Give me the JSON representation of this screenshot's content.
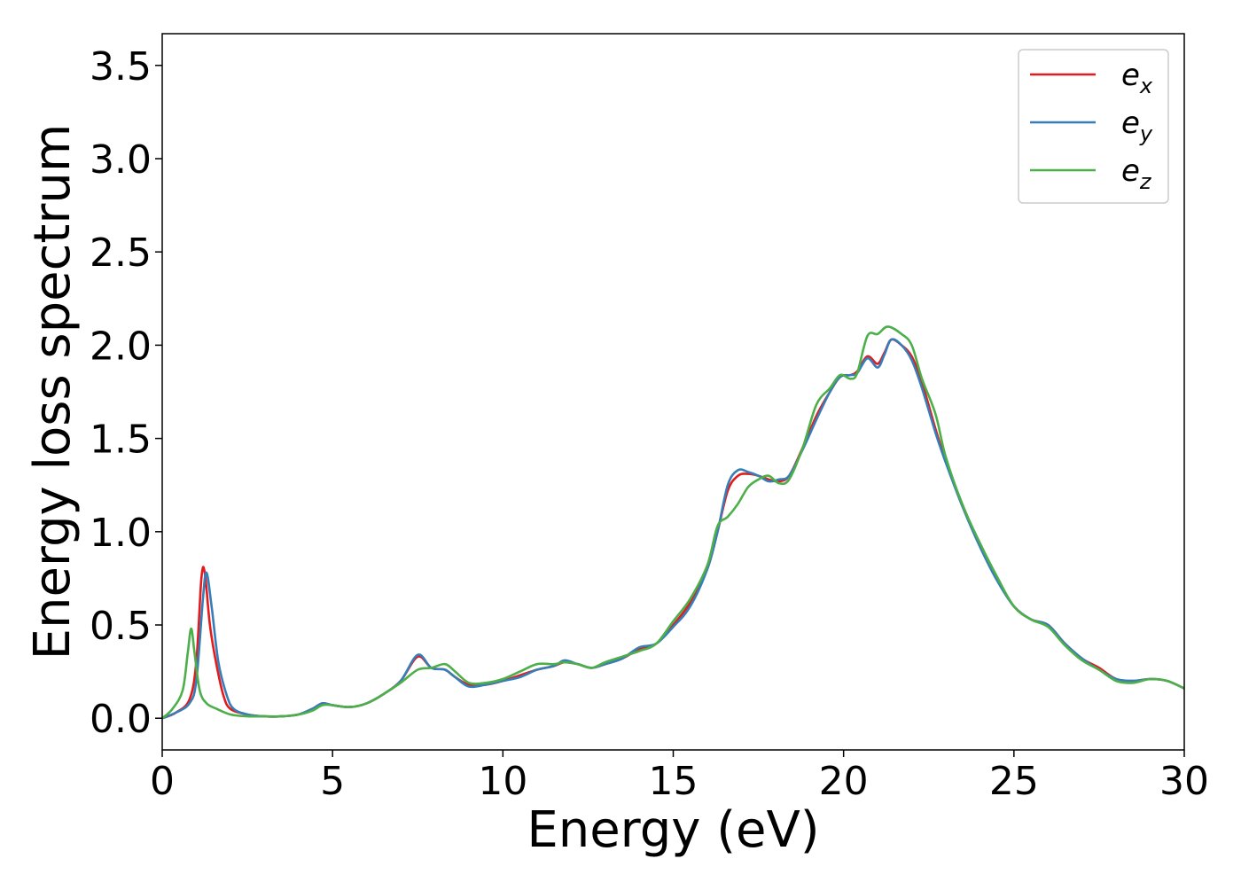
{
  "chart_data": {
    "type": "line",
    "title": "",
    "xlabel": "Energy (eV)",
    "ylabel": "Energy loss spectrum",
    "xlim": [
      0,
      30
    ],
    "ylim": [
      -0.17,
      3.67
    ],
    "x_ticks": [
      "0",
      "5",
      "10",
      "15",
      "20",
      "25",
      "30"
    ],
    "y_ticks": [
      "0.0",
      "0.5",
      "1.0",
      "1.5",
      "2.0",
      "2.5",
      "3.0",
      "3.5"
    ],
    "grid": false,
    "legend_position": "top-right",
    "series": [
      {
        "name": "e",
        "subscript": "x",
        "color": "#e41a1c",
        "points": [
          [
            0,
            0.0
          ],
          [
            0.4,
            0.03
          ],
          [
            0.8,
            0.1
          ],
          [
            1.0,
            0.3
          ],
          [
            1.15,
            0.75
          ],
          [
            1.25,
            0.78
          ],
          [
            1.4,
            0.5
          ],
          [
            1.6,
            0.28
          ],
          [
            1.8,
            0.12
          ],
          [
            2.0,
            0.05
          ],
          [
            2.5,
            0.02
          ],
          [
            3.0,
            0.01
          ],
          [
            3.5,
            0.01
          ],
          [
            4.0,
            0.02
          ],
          [
            4.4,
            0.05
          ],
          [
            4.7,
            0.08
          ],
          [
            5.0,
            0.07
          ],
          [
            5.5,
            0.06
          ],
          [
            6.0,
            0.08
          ],
          [
            6.5,
            0.13
          ],
          [
            7.0,
            0.2
          ],
          [
            7.5,
            0.33
          ],
          [
            7.9,
            0.27
          ],
          [
            8.3,
            0.26
          ],
          [
            8.6,
            0.22
          ],
          [
            9.0,
            0.18
          ],
          [
            9.5,
            0.18
          ],
          [
            10.0,
            0.2
          ],
          [
            10.5,
            0.23
          ],
          [
            11.0,
            0.26
          ],
          [
            11.5,
            0.28
          ],
          [
            11.8,
            0.3
          ],
          [
            12.2,
            0.29
          ],
          [
            12.6,
            0.27
          ],
          [
            13.0,
            0.29
          ],
          [
            13.5,
            0.32
          ],
          [
            14.0,
            0.37
          ],
          [
            14.5,
            0.4
          ],
          [
            15.0,
            0.5
          ],
          [
            15.5,
            0.62
          ],
          [
            16.0,
            0.8
          ],
          [
            16.3,
            1.0
          ],
          [
            16.6,
            1.22
          ],
          [
            16.9,
            1.3
          ],
          [
            17.2,
            1.31
          ],
          [
            17.5,
            1.3
          ],
          [
            17.8,
            1.28
          ],
          [
            18.1,
            1.27
          ],
          [
            18.4,
            1.3
          ],
          [
            18.8,
            1.45
          ],
          [
            19.2,
            1.62
          ],
          [
            19.6,
            1.75
          ],
          [
            19.9,
            1.83
          ],
          [
            20.2,
            1.84
          ],
          [
            20.4,
            1.86
          ],
          [
            20.7,
            1.94
          ],
          [
            21.0,
            1.9
          ],
          [
            21.2,
            1.96
          ],
          [
            21.4,
            2.03
          ],
          [
            21.7,
            2.0
          ],
          [
            22.0,
            1.94
          ],
          [
            22.3,
            1.8
          ],
          [
            22.7,
            1.55
          ],
          [
            23.0,
            1.38
          ],
          [
            23.5,
            1.14
          ],
          [
            24.0,
            0.93
          ],
          [
            24.5,
            0.75
          ],
          [
            25.0,
            0.6
          ],
          [
            25.5,
            0.53
          ],
          [
            26.0,
            0.5
          ],
          [
            26.5,
            0.4
          ],
          [
            27.0,
            0.32
          ],
          [
            27.5,
            0.27
          ],
          [
            28.0,
            0.21
          ],
          [
            28.5,
            0.2
          ],
          [
            29.0,
            0.21
          ],
          [
            29.5,
            0.2
          ],
          [
            30.0,
            0.16
          ]
        ]
      },
      {
        "name": "e",
        "subscript": "y",
        "color": "#377eb8",
        "points": [
          [
            0,
            0.0
          ],
          [
            0.4,
            0.03
          ],
          [
            0.8,
            0.08
          ],
          [
            1.0,
            0.2
          ],
          [
            1.2,
            0.65
          ],
          [
            1.3,
            0.78
          ],
          [
            1.45,
            0.6
          ],
          [
            1.65,
            0.3
          ],
          [
            1.9,
            0.12
          ],
          [
            2.1,
            0.05
          ],
          [
            2.5,
            0.02
          ],
          [
            3.0,
            0.01
          ],
          [
            3.5,
            0.01
          ],
          [
            4.0,
            0.02
          ],
          [
            4.4,
            0.05
          ],
          [
            4.7,
            0.08
          ],
          [
            5.0,
            0.07
          ],
          [
            5.5,
            0.06
          ],
          [
            6.0,
            0.08
          ],
          [
            6.5,
            0.13
          ],
          [
            7.0,
            0.2
          ],
          [
            7.5,
            0.34
          ],
          [
            7.9,
            0.27
          ],
          [
            8.3,
            0.26
          ],
          [
            8.6,
            0.22
          ],
          [
            9.0,
            0.17
          ],
          [
            9.5,
            0.18
          ],
          [
            10.0,
            0.2
          ],
          [
            10.5,
            0.22
          ],
          [
            11.0,
            0.26
          ],
          [
            11.5,
            0.28
          ],
          [
            11.8,
            0.31
          ],
          [
            12.2,
            0.29
          ],
          [
            12.6,
            0.27
          ],
          [
            13.0,
            0.29
          ],
          [
            13.5,
            0.32
          ],
          [
            14.0,
            0.38
          ],
          [
            14.5,
            0.4
          ],
          [
            15.0,
            0.49
          ],
          [
            15.5,
            0.6
          ],
          [
            16.0,
            0.8
          ],
          [
            16.3,
            1.0
          ],
          [
            16.6,
            1.25
          ],
          [
            16.9,
            1.33
          ],
          [
            17.2,
            1.32
          ],
          [
            17.5,
            1.3
          ],
          [
            17.8,
            1.27
          ],
          [
            18.1,
            1.28
          ],
          [
            18.4,
            1.3
          ],
          [
            18.8,
            1.44
          ],
          [
            19.2,
            1.6
          ],
          [
            19.6,
            1.75
          ],
          [
            19.9,
            1.83
          ],
          [
            20.2,
            1.84
          ],
          [
            20.4,
            1.85
          ],
          [
            20.7,
            1.93
          ],
          [
            21.0,
            1.88
          ],
          [
            21.2,
            1.95
          ],
          [
            21.4,
            2.03
          ],
          [
            21.7,
            2.0
          ],
          [
            22.0,
            1.92
          ],
          [
            22.3,
            1.77
          ],
          [
            22.7,
            1.53
          ],
          [
            23.0,
            1.37
          ],
          [
            23.5,
            1.13
          ],
          [
            24.0,
            0.92
          ],
          [
            24.5,
            0.74
          ],
          [
            25.0,
            0.6
          ],
          [
            25.5,
            0.53
          ],
          [
            26.0,
            0.5
          ],
          [
            26.5,
            0.4
          ],
          [
            27.0,
            0.32
          ],
          [
            27.5,
            0.26
          ],
          [
            28.0,
            0.21
          ],
          [
            28.5,
            0.2
          ],
          [
            29.0,
            0.21
          ],
          [
            29.5,
            0.2
          ],
          [
            30.0,
            0.16
          ]
        ]
      },
      {
        "name": "e",
        "subscript": "z",
        "color": "#4daf4a",
        "points": [
          [
            0,
            0.0
          ],
          [
            0.3,
            0.05
          ],
          [
            0.6,
            0.15
          ],
          [
            0.75,
            0.35
          ],
          [
            0.85,
            0.48
          ],
          [
            0.95,
            0.35
          ],
          [
            1.1,
            0.15
          ],
          [
            1.3,
            0.08
          ],
          [
            1.6,
            0.05
          ],
          [
            2.0,
            0.02
          ],
          [
            2.5,
            0.01
          ],
          [
            3.0,
            0.01
          ],
          [
            3.5,
            0.01
          ],
          [
            4.0,
            0.02
          ],
          [
            4.4,
            0.04
          ],
          [
            4.7,
            0.07
          ],
          [
            5.0,
            0.07
          ],
          [
            5.5,
            0.06
          ],
          [
            6.0,
            0.08
          ],
          [
            6.5,
            0.13
          ],
          [
            7.0,
            0.19
          ],
          [
            7.5,
            0.26
          ],
          [
            7.9,
            0.27
          ],
          [
            8.3,
            0.29
          ],
          [
            8.6,
            0.25
          ],
          [
            9.0,
            0.19
          ],
          [
            9.5,
            0.19
          ],
          [
            10.0,
            0.21
          ],
          [
            10.5,
            0.25
          ],
          [
            11.0,
            0.29
          ],
          [
            11.5,
            0.29
          ],
          [
            11.8,
            0.3
          ],
          [
            12.2,
            0.29
          ],
          [
            12.6,
            0.27
          ],
          [
            13.0,
            0.3
          ],
          [
            13.5,
            0.33
          ],
          [
            14.0,
            0.36
          ],
          [
            14.5,
            0.4
          ],
          [
            15.0,
            0.52
          ],
          [
            15.5,
            0.64
          ],
          [
            16.0,
            0.82
          ],
          [
            16.3,
            1.03
          ],
          [
            16.6,
            1.08
          ],
          [
            16.9,
            1.15
          ],
          [
            17.2,
            1.24
          ],
          [
            17.5,
            1.28
          ],
          [
            17.8,
            1.3
          ],
          [
            18.1,
            1.26
          ],
          [
            18.4,
            1.28
          ],
          [
            18.8,
            1.45
          ],
          [
            19.2,
            1.68
          ],
          [
            19.6,
            1.77
          ],
          [
            19.9,
            1.84
          ],
          [
            20.2,
            1.82
          ],
          [
            20.4,
            1.85
          ],
          [
            20.7,
            2.05
          ],
          [
            21.0,
            2.06
          ],
          [
            21.3,
            2.1
          ],
          [
            21.7,
            2.06
          ],
          [
            22.0,
            2.0
          ],
          [
            22.3,
            1.82
          ],
          [
            22.7,
            1.63
          ],
          [
            23.0,
            1.4
          ],
          [
            23.5,
            1.14
          ],
          [
            24.0,
            0.94
          ],
          [
            24.5,
            0.76
          ],
          [
            25.0,
            0.6
          ],
          [
            25.5,
            0.53
          ],
          [
            26.0,
            0.49
          ],
          [
            26.5,
            0.39
          ],
          [
            27.0,
            0.31
          ],
          [
            27.5,
            0.26
          ],
          [
            28.0,
            0.2
          ],
          [
            28.5,
            0.19
          ],
          [
            29.0,
            0.21
          ],
          [
            29.5,
            0.2
          ],
          [
            30.0,
            0.16
          ]
        ]
      }
    ]
  }
}
